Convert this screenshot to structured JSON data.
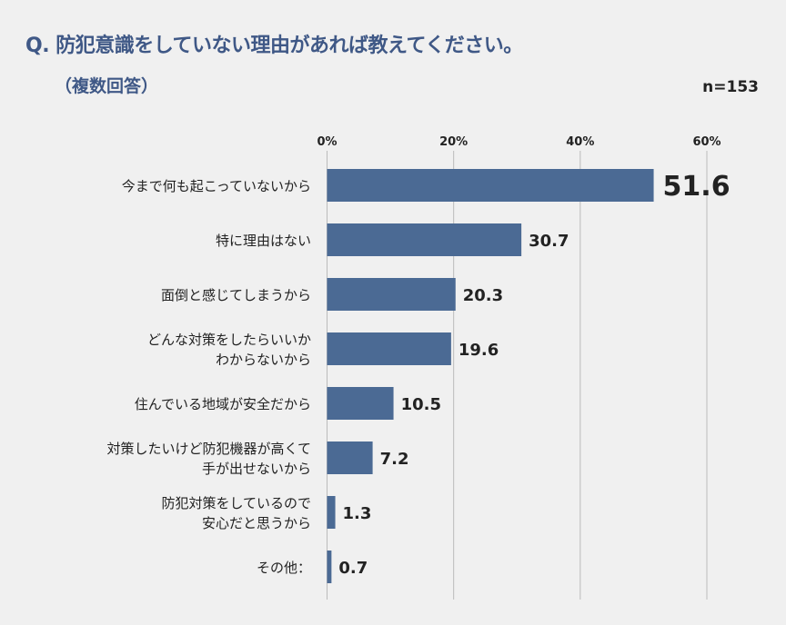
{
  "title": "Q. 防犯意識をしていない理由があれば教えてください。",
  "subtitle": "（複数回答）",
  "sample_size": "n=153",
  "chart_data": {
    "type": "bar",
    "orientation": "horizontal",
    "categories": [
      "今まで何も起こっていないから",
      "特に理由はない",
      "面倒と感じてしまうから",
      "どんな対策をしたらいいか\nわからないから",
      "住んでいる地域が安全だから",
      "対策したいけど防犯機器が高くて\n手が出せないから",
      "防犯対策をしているので\n安心だと思うから",
      "その他："
    ],
    "values": [
      51.6,
      30.7,
      20.3,
      19.6,
      10.5,
      7.2,
      1.3,
      0.7
    ],
    "value_labels": [
      "51.6",
      "30.7",
      "20.3",
      "19.6",
      "10.5",
      "7.2",
      "1.3",
      "0.7"
    ],
    "xlim": [
      0,
      60
    ],
    "ticks": [
      0,
      20,
      40,
      60
    ],
    "tick_labels": [
      "0%",
      "20%",
      "40%",
      "60%"
    ],
    "grid": true,
    "bar_color": "#4b6a94",
    "title_color": "#3f5886"
  }
}
